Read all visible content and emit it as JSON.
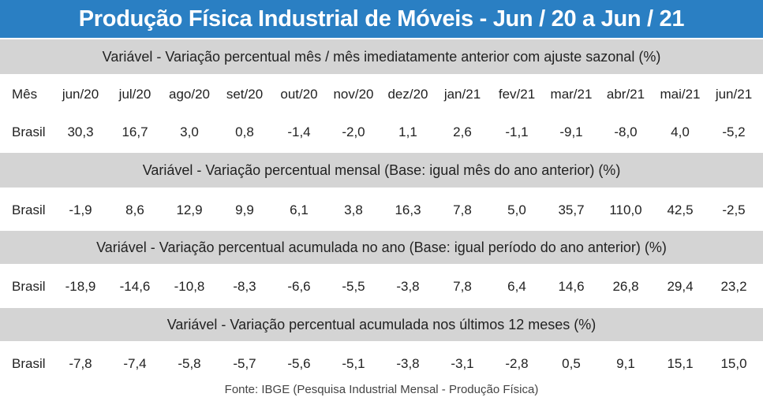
{
  "title": "Produção Física Industrial de Móveis - Jun / 20 a Jun / 21",
  "source": "Fonte: IBGE (Pesquisa Industrial Mensal - Produção Física)",
  "colors": {
    "title_bg": "#2a7fc3",
    "title_text": "#ffffff",
    "band_bg": "#d4d4d4"
  },
  "chart_data": {
    "type": "table",
    "header_label": "Mês",
    "row_label": "Brasil",
    "columns": [
      "jun/20",
      "jul/20",
      "ago/20",
      "set/20",
      "out/20",
      "nov/20",
      "dez/20",
      "jan/21",
      "fev/21",
      "mar/21",
      "abr/21",
      "mai/21",
      "jun/21"
    ],
    "sections": [
      {
        "title": "Variável - Variação percentual mês / mês imediatamente anterior com ajuste sazonal (%)",
        "values": [
          "30,3",
          "16,7",
          "3,0",
          "0,8",
          "-1,4",
          "-2,0",
          "1,1",
          "2,6",
          "-1,1",
          "-9,1",
          "-8,0",
          "4,0",
          "-5,2"
        ]
      },
      {
        "title": "Variável - Variação percentual mensal (Base: igual mês do ano anterior) (%)",
        "values": [
          "-1,9",
          "8,6",
          "12,9",
          "9,9",
          "6,1",
          "3,8",
          "16,3",
          "7,8",
          "5,0",
          "35,7",
          "110,0",
          "42,5",
          "-2,5"
        ]
      },
      {
        "title": "Variável - Variação percentual acumulada no ano (Base: igual período do ano anterior) (%)",
        "values": [
          "-18,9",
          "-14,6",
          "-10,8",
          "-8,3",
          "-6,6",
          "-5,5",
          "-3,8",
          "7,8",
          "6,4",
          "14,6",
          "26,8",
          "29,4",
          "23,2"
        ]
      },
      {
        "title": "Variável - Variação percentual acumulada nos últimos 12 meses (%)",
        "values": [
          "-7,8",
          "-7,4",
          "-5,8",
          "-5,7",
          "-5,6",
          "-5,1",
          "-3,8",
          "-3,1",
          "-2,8",
          "0,5",
          "9,1",
          "15,1",
          "15,0"
        ]
      }
    ]
  }
}
